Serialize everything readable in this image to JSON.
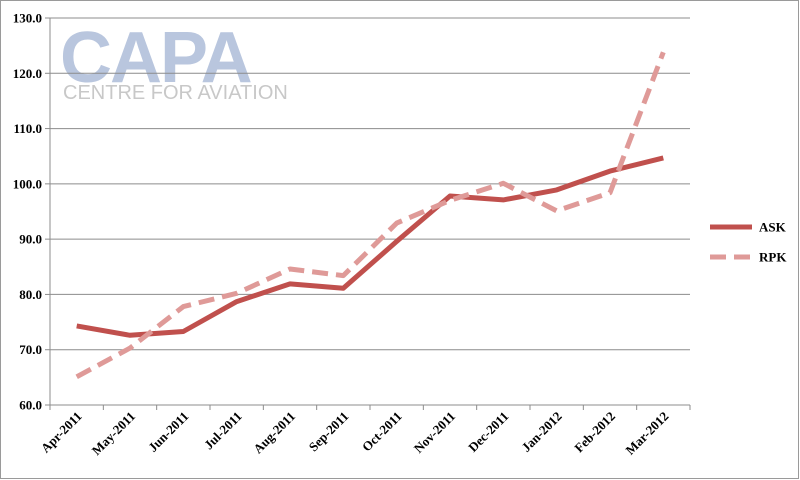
{
  "watermark": {
    "logo_text": "CAPA",
    "tagline": "CENTRE FOR AVIATION"
  },
  "chart_data": {
    "type": "line",
    "categories": [
      "Apr-2011",
      "May-2011",
      "Jun-2011",
      "Jul-2011",
      "Aug-2011",
      "Sep-2011",
      "Oct-2011",
      "Nov-2011",
      "Dec-2011",
      "Jan-2012",
      "Feb-2012",
      "Mar-2012"
    ],
    "ylim": [
      60,
      130
    ],
    "yticks": [
      "60.0",
      "70.0",
      "80.0",
      "90.0",
      "100.0",
      "110.0",
      "120.0",
      "130.0"
    ],
    "grid": true,
    "legend_position": "right",
    "series": [
      {
        "name": "ASK",
        "style": "solid",
        "color": "#c0504d",
        "values": [
          74.3,
          72.6,
          73.3,
          78.7,
          81.9,
          81.1,
          89.6,
          97.8,
          97.1,
          98.9,
          102.3,
          104.7
        ]
      },
      {
        "name": "RPK",
        "style": "dashed",
        "color": "#df9a98",
        "values": [
          65.1,
          70.3,
          77.8,
          80.2,
          84.6,
          83.4,
          92.9,
          97.0,
          100.1,
          95.1,
          98.4,
          123.8
        ]
      }
    ]
  }
}
